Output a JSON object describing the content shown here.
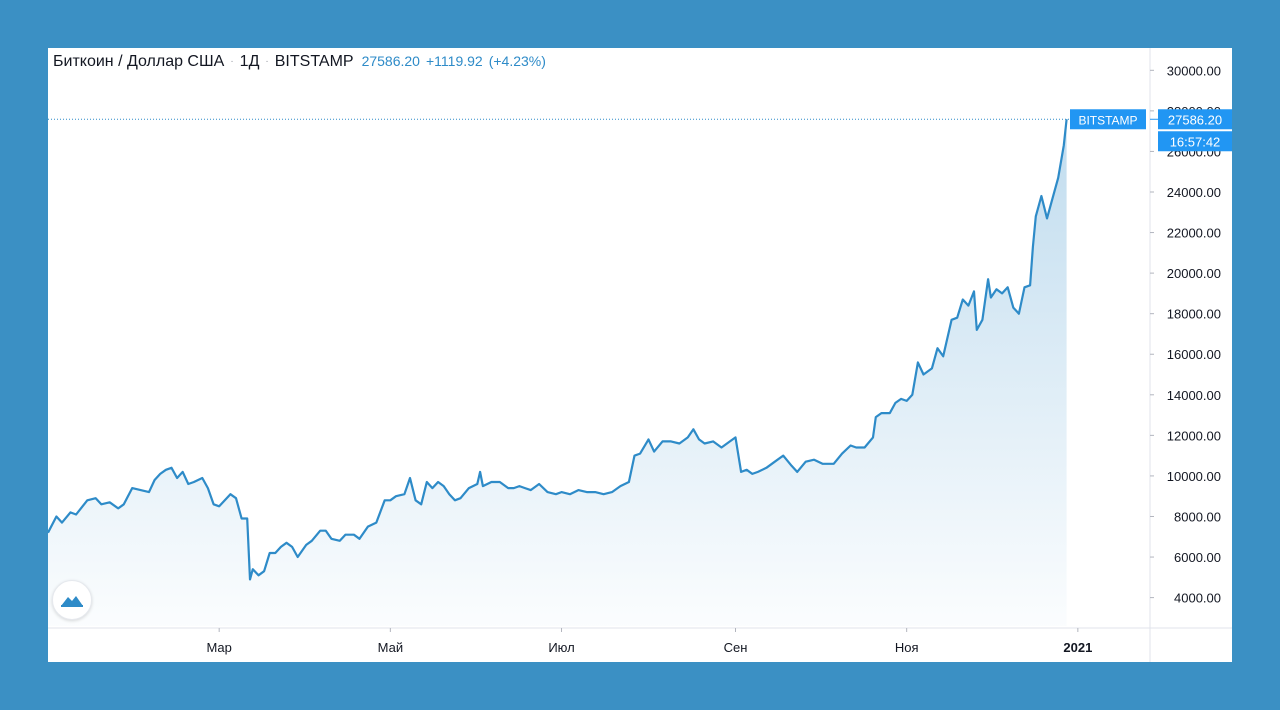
{
  "header": {
    "symbol_name": "Биткоин / Доллар США",
    "interval": "1Д",
    "exchange": "BITSTAMP",
    "last_price": "27586.20",
    "change": "+1119.92",
    "change_pct": "(+4.23%)",
    "separator": "·"
  },
  "price_tag": {
    "label": "BITSTAMP",
    "price": "27586.20",
    "countdown": "16:57:42"
  },
  "colors": {
    "frame": "#3b90c4",
    "line": "#2e8bc8",
    "accent": "#2196f3"
  },
  "logo_icon": "tradingview-cloud-icon",
  "chart_data": {
    "type": "area",
    "y_axis": {
      "ticks": [
        "4000.00",
        "6000.00",
        "8000.00",
        "10000.00",
        "12000.00",
        "14000.00",
        "16000.00",
        "18000.00",
        "20000.00",
        "22000.00",
        "24000.00",
        "26000.00",
        "28000.00",
        "30000.00"
      ],
      "ylim": [
        2600,
        31100
      ]
    },
    "x_axis": {
      "ticks": [
        {
          "label": "Мар",
          "date": "2020-03-01"
        },
        {
          "label": "Май",
          "date": "2020-05-01"
        },
        {
          "label": "Июл",
          "date": "2020-07-01"
        },
        {
          "label": "Сен",
          "date": "2020-09-01"
        },
        {
          "label": "Ноя",
          "date": "2020-11-01"
        },
        {
          "label": "2021",
          "date": "2021-01-01"
        }
      ],
      "xlim": [
        "2019-12-31",
        "2021-01-26"
      ]
    },
    "grid": false,
    "series": [
      {
        "values": [
          [
            "2019-12-31",
            7200
          ],
          [
            "2020-01-03",
            8000
          ],
          [
            "2020-01-05",
            7700
          ],
          [
            "2020-01-08",
            8200
          ],
          [
            "2020-01-10",
            8100
          ],
          [
            "2020-01-14",
            8800
          ],
          [
            "2020-01-17",
            8900
          ],
          [
            "2020-01-19",
            8600
          ],
          [
            "2020-01-22",
            8700
          ],
          [
            "2020-01-25",
            8400
          ],
          [
            "2020-01-27",
            8600
          ],
          [
            "2020-01-30",
            9400
          ],
          [
            "2020-02-02",
            9300
          ],
          [
            "2020-02-05",
            9200
          ],
          [
            "2020-02-07",
            9800
          ],
          [
            "2020-02-09",
            10100
          ],
          [
            "2020-02-11",
            10300
          ],
          [
            "2020-02-13",
            10400
          ],
          [
            "2020-02-15",
            9900
          ],
          [
            "2020-02-17",
            10200
          ],
          [
            "2020-02-19",
            9600
          ],
          [
            "2020-02-21",
            9700
          ],
          [
            "2020-02-24",
            9900
          ],
          [
            "2020-02-26",
            9400
          ],
          [
            "2020-02-28",
            8600
          ],
          [
            "2020-03-01",
            8500
          ],
          [
            "2020-03-03",
            8800
          ],
          [
            "2020-03-05",
            9100
          ],
          [
            "2020-03-07",
            8900
          ],
          [
            "2020-03-09",
            7900
          ],
          [
            "2020-03-11",
            7900
          ],
          [
            "2020-03-12",
            4900
          ],
          [
            "2020-03-13",
            5400
          ],
          [
            "2020-03-15",
            5100
          ],
          [
            "2020-03-17",
            5300
          ],
          [
            "2020-03-19",
            6200
          ],
          [
            "2020-03-21",
            6200
          ],
          [
            "2020-03-23",
            6500
          ],
          [
            "2020-03-25",
            6700
          ],
          [
            "2020-03-27",
            6500
          ],
          [
            "2020-03-29",
            6000
          ],
          [
            "2020-04-01",
            6600
          ],
          [
            "2020-04-03",
            6800
          ],
          [
            "2020-04-06",
            7300
          ],
          [
            "2020-04-08",
            7300
          ],
          [
            "2020-04-10",
            6900
          ],
          [
            "2020-04-13",
            6800
          ],
          [
            "2020-04-15",
            7100
          ],
          [
            "2020-04-18",
            7100
          ],
          [
            "2020-04-20",
            6900
          ],
          [
            "2020-04-23",
            7500
          ],
          [
            "2020-04-26",
            7700
          ],
          [
            "2020-04-29",
            8800
          ],
          [
            "2020-05-01",
            8800
          ],
          [
            "2020-05-03",
            9000
          ],
          [
            "2020-05-06",
            9100
          ],
          [
            "2020-05-08",
            9900
          ],
          [
            "2020-05-10",
            8800
          ],
          [
            "2020-05-12",
            8600
          ],
          [
            "2020-05-14",
            9700
          ],
          [
            "2020-05-16",
            9400
          ],
          [
            "2020-05-18",
            9700
          ],
          [
            "2020-05-20",
            9500
          ],
          [
            "2020-05-22",
            9100
          ],
          [
            "2020-05-24",
            8800
          ],
          [
            "2020-05-26",
            8900
          ],
          [
            "2020-05-29",
            9400
          ],
          [
            "2020-06-01",
            9600
          ],
          [
            "2020-06-02",
            10200
          ],
          [
            "2020-06-03",
            9500
          ],
          [
            "2020-06-06",
            9700
          ],
          [
            "2020-06-09",
            9700
          ],
          [
            "2020-06-12",
            9400
          ],
          [
            "2020-06-14",
            9400
          ],
          [
            "2020-06-16",
            9500
          ],
          [
            "2020-06-18",
            9400
          ],
          [
            "2020-06-20",
            9300
          ],
          [
            "2020-06-23",
            9600
          ],
          [
            "2020-06-26",
            9200
          ],
          [
            "2020-06-29",
            9100
          ],
          [
            "2020-07-01",
            9200
          ],
          [
            "2020-07-04",
            9100
          ],
          [
            "2020-07-07",
            9300
          ],
          [
            "2020-07-10",
            9200
          ],
          [
            "2020-07-13",
            9200
          ],
          [
            "2020-07-16",
            9100
          ],
          [
            "2020-07-19",
            9200
          ],
          [
            "2020-07-22",
            9500
          ],
          [
            "2020-07-25",
            9700
          ],
          [
            "2020-07-27",
            11000
          ],
          [
            "2020-07-29",
            11100
          ],
          [
            "2020-08-01",
            11800
          ],
          [
            "2020-08-03",
            11200
          ],
          [
            "2020-08-06",
            11700
          ],
          [
            "2020-08-09",
            11700
          ],
          [
            "2020-08-12",
            11600
          ],
          [
            "2020-08-15",
            11900
          ],
          [
            "2020-08-17",
            12300
          ],
          [
            "2020-08-19",
            11800
          ],
          [
            "2020-08-21",
            11600
          ],
          [
            "2020-08-24",
            11700
          ],
          [
            "2020-08-27",
            11400
          ],
          [
            "2020-08-30",
            11700
          ],
          [
            "2020-09-01",
            11900
          ],
          [
            "2020-09-03",
            10200
          ],
          [
            "2020-09-05",
            10300
          ],
          [
            "2020-09-07",
            10100
          ],
          [
            "2020-09-09",
            10200
          ],
          [
            "2020-09-12",
            10400
          ],
          [
            "2020-09-15",
            10700
          ],
          [
            "2020-09-18",
            11000
          ],
          [
            "2020-09-21",
            10500
          ],
          [
            "2020-09-23",
            10200
          ],
          [
            "2020-09-26",
            10700
          ],
          [
            "2020-09-29",
            10800
          ],
          [
            "2020-10-02",
            10600
          ],
          [
            "2020-10-06",
            10600
          ],
          [
            "2020-10-09",
            11100
          ],
          [
            "2020-10-12",
            11500
          ],
          [
            "2020-10-14",
            11400
          ],
          [
            "2020-10-17",
            11400
          ],
          [
            "2020-10-20",
            11900
          ],
          [
            "2020-10-21",
            12900
          ],
          [
            "2020-10-23",
            13100
          ],
          [
            "2020-10-26",
            13100
          ],
          [
            "2020-10-28",
            13600
          ],
          [
            "2020-10-30",
            13800
          ],
          [
            "2020-11-01",
            13700
          ],
          [
            "2020-11-03",
            14000
          ],
          [
            "2020-11-05",
            15600
          ],
          [
            "2020-11-07",
            15000
          ],
          [
            "2020-11-10",
            15300
          ],
          [
            "2020-11-12",
            16300
          ],
          [
            "2020-11-14",
            15900
          ],
          [
            "2020-11-17",
            17700
          ],
          [
            "2020-11-19",
            17800
          ],
          [
            "2020-11-21",
            18700
          ],
          [
            "2020-11-23",
            18400
          ],
          [
            "2020-11-25",
            19100
          ],
          [
            "2020-11-26",
            17200
          ],
          [
            "2020-11-28",
            17700
          ],
          [
            "2020-11-30",
            19700
          ],
          [
            "2020-12-01",
            18800
          ],
          [
            "2020-12-03",
            19200
          ],
          [
            "2020-12-05",
            19000
          ],
          [
            "2020-12-07",
            19300
          ],
          [
            "2020-12-09",
            18300
          ],
          [
            "2020-12-11",
            18000
          ],
          [
            "2020-12-13",
            19300
          ],
          [
            "2020-12-15",
            19400
          ],
          [
            "2020-12-16",
            21300
          ],
          [
            "2020-12-17",
            22800
          ],
          [
            "2020-12-19",
            23800
          ],
          [
            "2020-12-21",
            22700
          ],
          [
            "2020-12-23",
            23700
          ],
          [
            "2020-12-25",
            24700
          ],
          [
            "2020-12-27",
            26300
          ],
          [
            "2020-12-28",
            27586
          ]
        ]
      }
    ]
  }
}
